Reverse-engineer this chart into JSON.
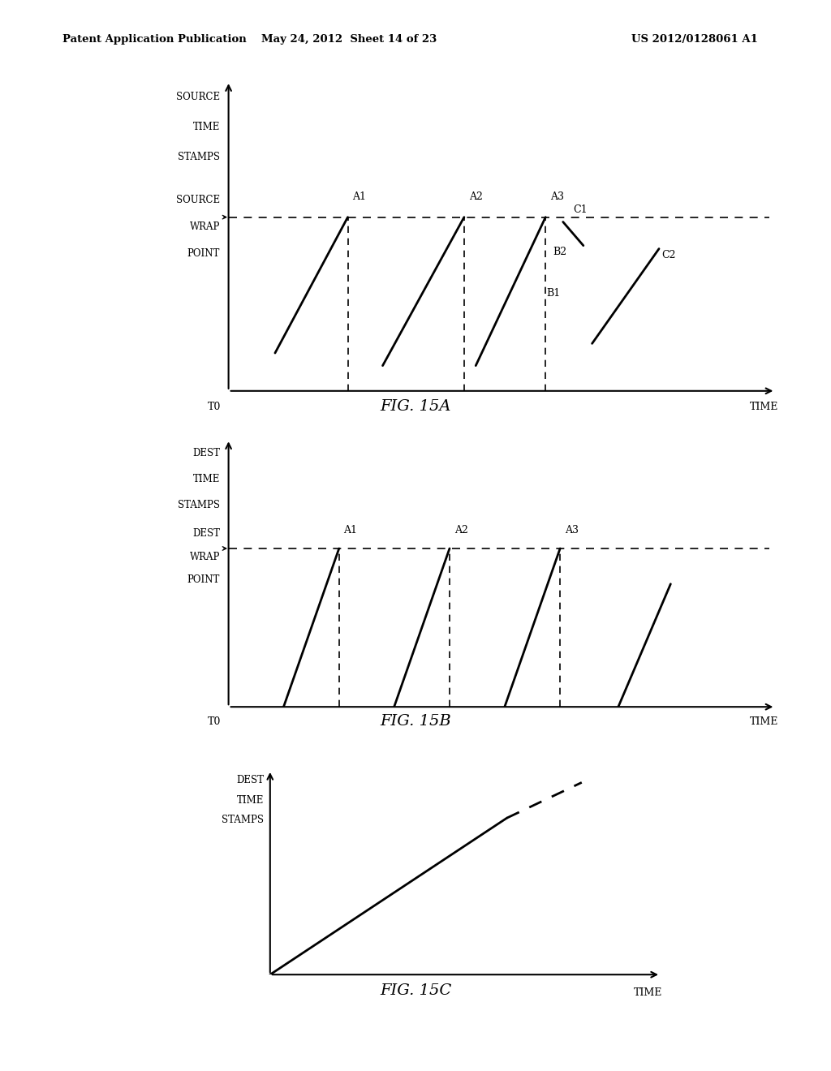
{
  "header_left": "Patent Application Publication",
  "header_mid": "May 24, 2012  Sheet 14 of 23",
  "header_right": "US 2012/0128061 A1",
  "fig15a_title": "FIG. 15A",
  "fig15b_title": "FIG. 15B",
  "fig15c_title": "FIG. 15C",
  "bg_color": "#ffffff"
}
